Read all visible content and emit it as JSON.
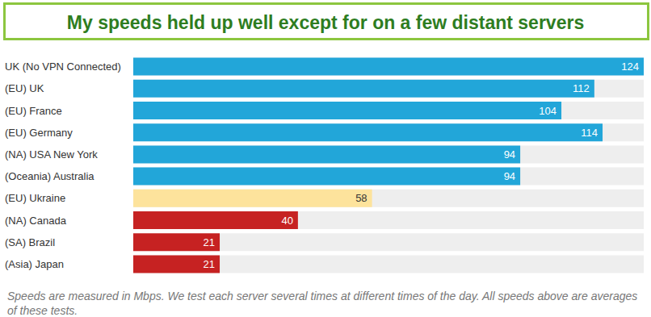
{
  "chart_data": {
    "type": "bar",
    "orientation": "horizontal",
    "title": "My speeds held up well except for on a few distant servers",
    "footnote": "Speeds are measured in Mbps. We test each server several times at different times of the day. All speeds above are averages of these tests.",
    "categories": [
      "UK (No VPN Connected)",
      "(EU) UK",
      "(EU) France",
      "(EU) Germany",
      "(NA) USA New York",
      "(Oceania) Australia",
      "(EU) Ukraine",
      "(NA) Canada",
      "(SA) Brazil",
      "(Asia) Japan"
    ],
    "values": [
      124,
      112,
      104,
      114,
      94,
      94,
      58,
      40,
      21,
      21
    ],
    "colors": [
      "#22a6d9",
      "#22a6d9",
      "#22a6d9",
      "#22a6d9",
      "#22a6d9",
      "#22a6d9",
      "#fde39c",
      "#c62222",
      "#c62222",
      "#c62222"
    ],
    "xlim": [
      0,
      124
    ],
    "tick_labels": "y",
    "grid": false,
    "data_labels": true
  }
}
